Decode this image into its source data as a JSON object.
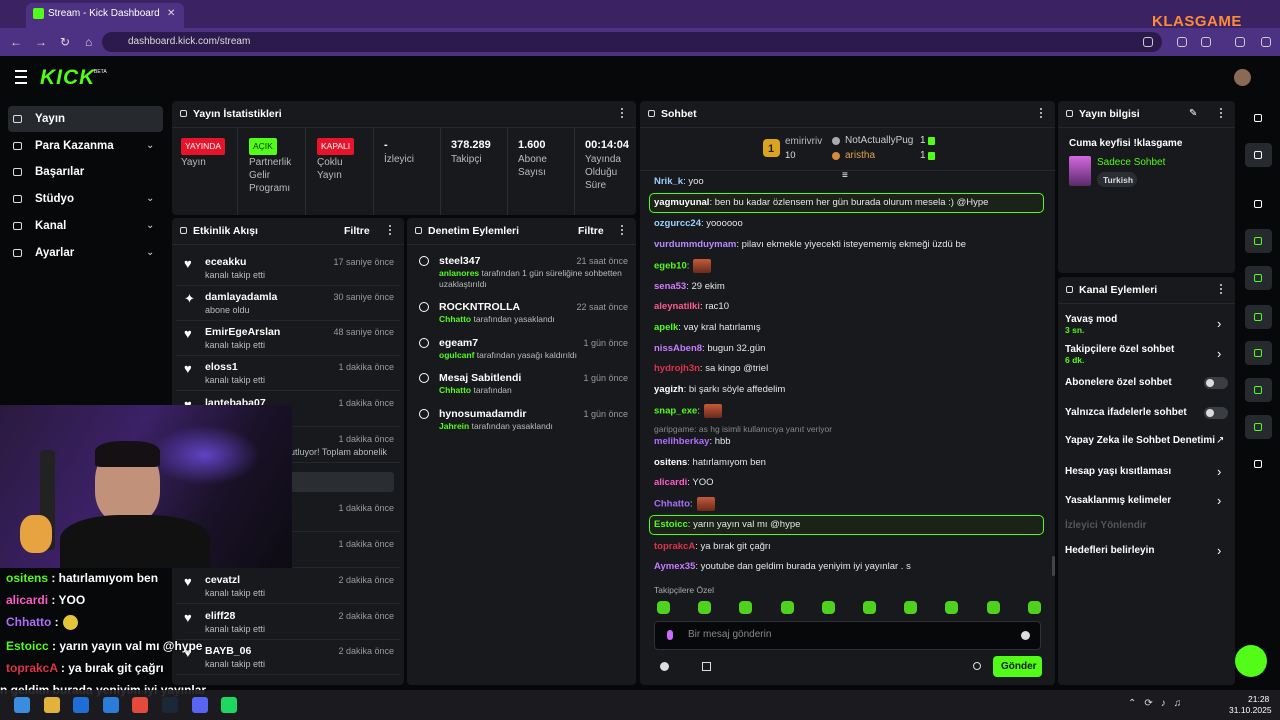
{
  "browser": {
    "tab_title": "Stream - Kick Dashboard",
    "url": "dashboard.kick.com/stream",
    "watermark": "KLASGAME"
  },
  "header": {
    "logo": "KICK",
    "logo_badge": "BETA"
  },
  "nav": [
    "Yayın",
    "Para Kazanma",
    "Başarılar",
    "Stüdyo",
    "Kanal",
    "Ayarlar"
  ],
  "stats": {
    "title": "Yayın İstatistikleri",
    "statuses": [
      {
        "badge": "YAYINDA",
        "label": "Yayın",
        "color": "#e8142b"
      },
      {
        "badge": "AÇIK",
        "label": "Partnerlik Gelir Programı",
        "color": "#53fc18"
      },
      {
        "badge": "KAPALI",
        "label": "Çoklu Yayın",
        "color": "#e8142b"
      }
    ],
    "metrics": [
      {
        "value": "-",
        "label": "İzleyici"
      },
      {
        "value": "378.289",
        "label": "Takipçi"
      },
      {
        "value": "1.600",
        "label": "Abone Sayısı"
      },
      {
        "value": "00:14:04",
        "label": "Yayında Olduğu Süre"
      }
    ]
  },
  "activity": {
    "title": "Etkinlik Akışı",
    "filter": "Filtre",
    "items": [
      {
        "user": "eceakku",
        "action": "kanalı takip etti",
        "time": "17 saniye önce"
      },
      {
        "user": "damlayadamla",
        "action": "abone oldu",
        "time": "30 saniye önce"
      },
      {
        "user": "EmirEgeArslan",
        "action": "kanalı takip etti",
        "time": "48 saniye önce"
      },
      {
        "user": "eloss1",
        "action": "kanalı takip etti",
        "time": "1 dakika önce"
      },
      {
        "user": "lantebaba07",
        "time": "1 dakika önce"
      },
      {
        "action": "utluyor! Toplam abonelik",
        "time": "1 dakika önce"
      },
      {
        "time": "1 dakika önce"
      },
      {
        "time": "1 dakika önce"
      },
      {
        "user": "cevatzl",
        "action": "kanalı takip etti",
        "time": "2 dakika önce"
      },
      {
        "user": "eliff28",
        "action": "kanalı takip etti",
        "time": "2 dakika önce"
      },
      {
        "user": "BAYB_06",
        "action": "kanalı takip etti",
        "time": "2 dakika önce"
      }
    ]
  },
  "moderation": {
    "title": "Denetim Eylemleri",
    "filter": "Filtre",
    "items": [
      {
        "title": "steel347",
        "actor": "anlanores",
        "action": "tarafından 1 gün süreliğine sohbetten uzaklaştırıldı",
        "time": "21 saat önce"
      },
      {
        "title": "ROCKNTROLLA",
        "actor": "Chhatto",
        "action": "tarafından yasaklandı",
        "time": "22 saat önce"
      },
      {
        "title": "egeam7",
        "actor": "ogulcanf",
        "action": "tarafından yasağı kaldırıldı",
        "time": "1 gün önce"
      },
      {
        "title": "Mesaj Sabitlendi",
        "actor": "Chhatto",
        "action": "tarafından",
        "time": "1 gün önce"
      },
      {
        "title": "hynosumadamdir",
        "actor": "Jahrein",
        "action": "tarafından yasaklandı",
        "time": "1 gün önce"
      }
    ]
  },
  "chat": {
    "title": "Sohbet",
    "leaderboard": {
      "top": {
        "rank": "1",
        "user": "emirivriv",
        "count": "10"
      },
      "others": [
        {
          "user": "NotActuallyPug",
          "count": "1"
        },
        {
          "user": "aristha",
          "count": "1"
        }
      ]
    },
    "messages": [
      {
        "user": "Nrik_k",
        "color": "#9bd0ff",
        "text": ": yoo"
      },
      {
        "user": "yagmuyunal",
        "color": "#ffffff",
        "text": ": ben bu kadar özlensem her gün burada olurum mesela :) @Hype",
        "highlight": true
      },
      {
        "user": "ozgurcc24",
        "color": "#9bd0ff",
        "text": ": yoooooo"
      },
      {
        "user": "vurdummduymam",
        "color": "#b58cff",
        "text": ": pilavı ekmekle yiyecekti isteyememiş ekmeği üzdü be"
      },
      {
        "user": "egeb10",
        "color": "#53fc18",
        "text": ":",
        "emote": true
      },
      {
        "user": "sena53",
        "color": "#d67bff",
        "text": ": 29 ekim"
      },
      {
        "user": "aleynatilki",
        "color": "#ff5a8a",
        "text": ": rac10"
      },
      {
        "user": "apelk",
        "color": "#53fc18",
        "text": ": vay kral hatırlamış"
      },
      {
        "user": "nissAben8",
        "color": "#c87cff",
        "text": ": bugun 32.gün"
      },
      {
        "user": "hydrojh3n",
        "color": "#e0334a",
        "text": ": sa kingo @triel"
      },
      {
        "user": "yagizh",
        "color": "#ffffff",
        "text": ": bi şarkı söyle affedelim"
      },
      {
        "user": "snap_exe",
        "color": "#53fc18",
        "text": ":",
        "emote": true
      },
      {
        "user": "melihberkay",
        "color": "#b06cff",
        "text": ": hbb",
        "reply": "garipgame: as hg isimli kullanıcıya yanıt veriyor"
      },
      {
        "user": "ositens",
        "color": "#ffffff",
        "text": ": hatırlamıyom ben"
      },
      {
        "user": "alicardi",
        "color": "#ff5ac8",
        "text": ": YOO"
      },
      {
        "user": "Chhatto",
        "color": "#b06cff",
        "text": ":",
        "emote": true
      },
      {
        "user": "Estoicc",
        "color": "#53fc18",
        "text": ": yarın yayın val mı @hype",
        "highlight": true
      },
      {
        "user": "toprakcA",
        "color": "#e0334a",
        "text": ": ya bırak git çağrı"
      },
      {
        "user": "Aymex35",
        "color": "#c87cff",
        "text": ": youtube dan geldim burada yeniyim iyi yayınlar . s"
      }
    ],
    "followers_only": "Takipçilere Özel",
    "placeholder": "Bir mesaj gönderin",
    "send": "Gönder"
  },
  "stream_info": {
    "title": "Yayın bilgisi",
    "stream_title": "Cuma keyfisi !klasgame",
    "category": "Sadece Sohbet",
    "tag": "Turkish"
  },
  "channel_actions": {
    "title": "Kanal Eylemleri",
    "items": [
      {
        "label": "Yavaş mod",
        "sub": "3 sn.",
        "control": "chevron"
      },
      {
        "label": "Takipçilere özel sohbet",
        "sub": "6 dk.",
        "control": "chevron"
      },
      {
        "label": "Abonelere özel sohbet",
        "control": "toggle"
      },
      {
        "label": "Yalnızca ifadelerle sohbet",
        "control": "toggle"
      },
      {
        "label": "Yapay Zeka ile Sohbet Denetimi",
        "control": "external"
      },
      {
        "label": "Hesap yaşı kısıtlaması",
        "control": "chevron"
      },
      {
        "label": "Yasaklanmış kelimeler",
        "control": "chevron"
      },
      {
        "label": "İzleyici Yönlendir",
        "control": "disabled"
      },
      {
        "label": "Hedefleri belirleyin",
        "control": "chevron"
      }
    ]
  },
  "overlay_chat": [
    {
      "user": "ositens",
      "color": "#53fc18",
      "text": " : hatırlamıyom ben"
    },
    {
      "user": "alicardi",
      "color": "#ff5ac8",
      "text": " : YOO"
    },
    {
      "user": "Chhatto",
      "color": "#b06cff",
      "text": " :"
    },
    {
      "user": "Estoicc",
      "color": "#53fc18",
      "text": " : yarın yayın val mı @hype"
    },
    {
      "user": "toprakcA",
      "color": "#e0334a",
      "text": " : ya bırak git çağrı"
    },
    {
      "text": "n geldim burada yeniyim iyi yayınlar"
    }
  ],
  "taskbar": {
    "time": "21:28",
    "date": "31.10.2025"
  }
}
